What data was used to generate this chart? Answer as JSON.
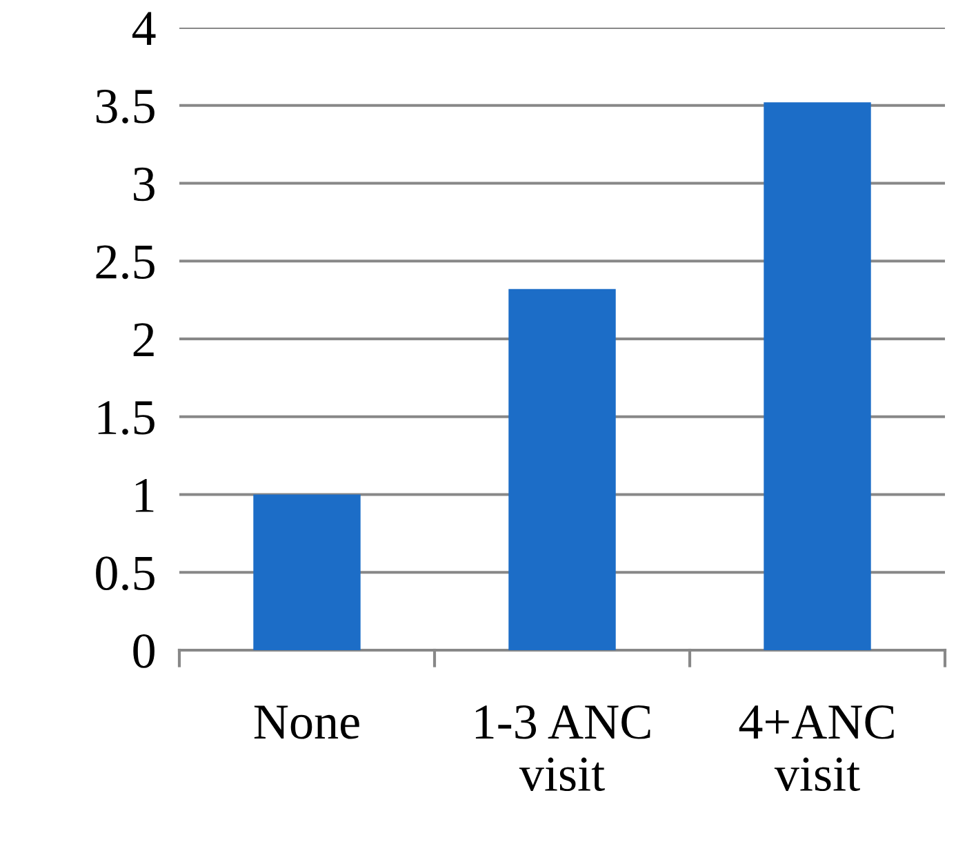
{
  "chart_data": {
    "type": "bar",
    "categories": [
      "None",
      "1-3 ANC\nvisit",
      "4+ANC\nvisit"
    ],
    "values": [
      1.0,
      2.32,
      3.52
    ],
    "color": "#1c6dc7",
    "ylim": [
      0,
      4
    ],
    "yticks": [
      0,
      0.5,
      1,
      1.5,
      2,
      2.5,
      3,
      3.5,
      4
    ],
    "grid": "y"
  }
}
